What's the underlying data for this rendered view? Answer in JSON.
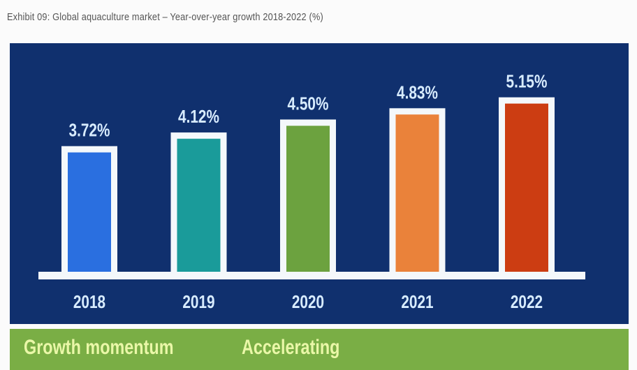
{
  "title": "Exhibit 09:  Global aquaculture market – Year-over-year growth 2018-2022 (%)",
  "chart_data": {
    "type": "bar",
    "title": "Global aquaculture market – Year-over-year growth 2018-2022 (%)",
    "categories": [
      "2018",
      "2019",
      "2020",
      "2021",
      "2022"
    ],
    "values": [
      3.72,
      4.12,
      4.5,
      4.83,
      5.15
    ],
    "labels": [
      "3.72%",
      "4.12%",
      "4.50%",
      "4.83%",
      "5.15%"
    ],
    "colors": [
      "#2a6fe0",
      "#1a9b9a",
      "#6ca23f",
      "#ea823a",
      "#cc3d12"
    ],
    "xlabel": "",
    "ylabel": "",
    "ylim": [
      0,
      5.3
    ],
    "grid": false
  },
  "footer": {
    "label": "Growth momentum",
    "value": "Accelerating"
  }
}
